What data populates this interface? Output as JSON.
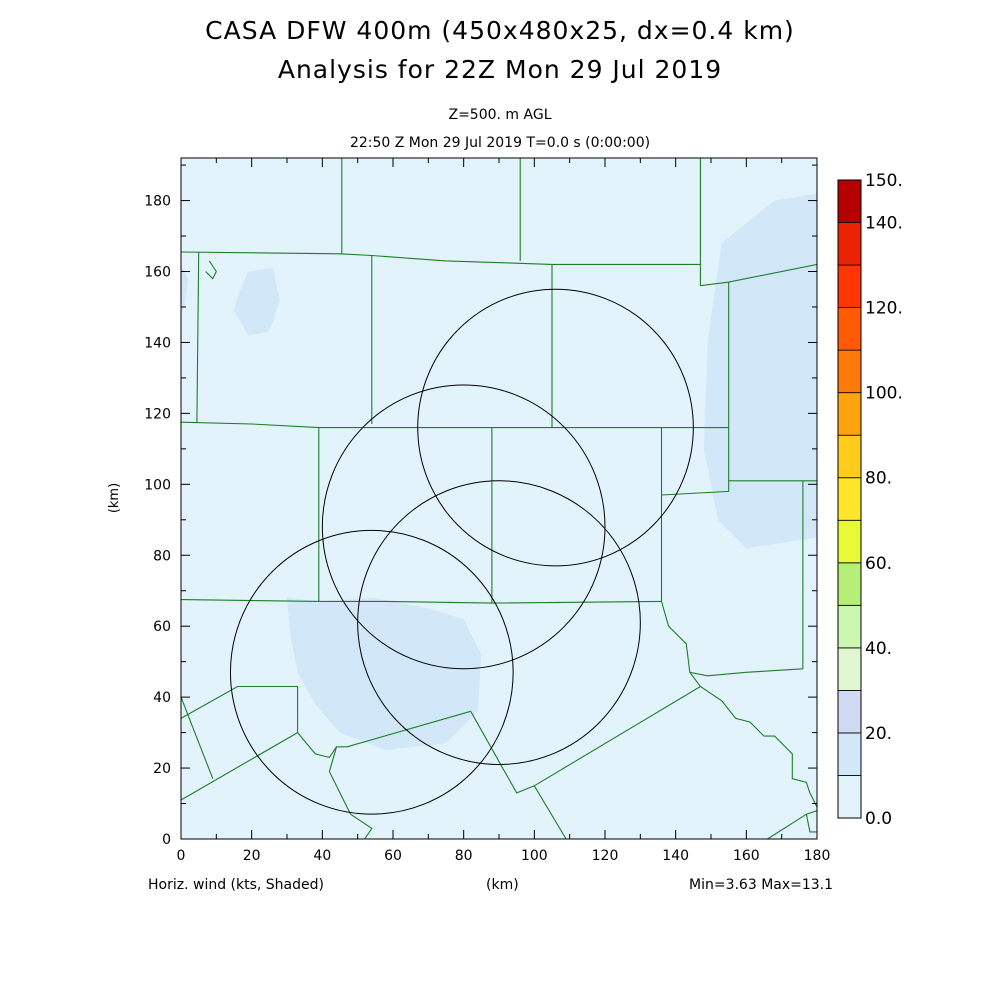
{
  "header": {
    "title_line1": "CASA DFW 400m (450x480x25, dx=0.4 km)",
    "title_line2": "Analysis for 22Z Mon 29 Jul 2019",
    "subtitle_line1": "Z=500. m AGL",
    "subtitle_line2": "22:50 Z Mon 29 Jul 2019   T=0.0 s (0:00:00)"
  },
  "footer": {
    "field_label": "Horiz. wind (kts, Shaded)",
    "xunit_label": "(km)",
    "minmax": "Min=3.63 Max=13.1"
  },
  "chart_data": {
    "type": "heatmap",
    "xlabel": "(km)",
    "ylabel": "(km)",
    "xlim": [
      0,
      180
    ],
    "ylim": [
      0,
      192
    ],
    "xticks": [
      0,
      20,
      40,
      60,
      80,
      100,
      120,
      140,
      160,
      180
    ],
    "yticks": [
      0,
      20,
      40,
      60,
      80,
      100,
      120,
      140,
      160,
      180
    ],
    "field": "Horiz. wind (kts, Shaded)",
    "field_min": 3.63,
    "field_max": 13.1,
    "colorbar": {
      "labels": [
        {
          "v": 0,
          "t": "0.0"
        },
        {
          "v": 20,
          "t": "20."
        },
        {
          "v": 40,
          "t": "40."
        },
        {
          "v": 60,
          "t": "60."
        },
        {
          "v": 80,
          "t": "80."
        },
        {
          "v": 100,
          "t": "100."
        },
        {
          "v": 120,
          "t": "120."
        },
        {
          "v": 140,
          "t": "140."
        },
        {
          "v": 150,
          "t": "150."
        }
      ],
      "bins": [
        {
          "from": 0,
          "to": 10,
          "color": "#e2f3fc"
        },
        {
          "from": 10,
          "to": 20,
          "color": "#d2e8f9"
        },
        {
          "from": 20,
          "to": 30,
          "color": "#d2d9f4"
        },
        {
          "from": 30,
          "to": 40,
          "color": "#dff8d3"
        },
        {
          "from": 40,
          "to": 50,
          "color": "#cbf7b0"
        },
        {
          "from": 50,
          "to": 60,
          "color": "#b5ef78"
        },
        {
          "from": 60,
          "to": 70,
          "color": "#e6fa37"
        },
        {
          "from": 70,
          "to": 80,
          "color": "#ffe62a"
        },
        {
          "from": 80,
          "to": 90,
          "color": "#ffcc1c"
        },
        {
          "from": 90,
          "to": 100,
          "color": "#ffa30f"
        },
        {
          "from": 100,
          "to": 110,
          "color": "#ff7a0a"
        },
        {
          "from": 110,
          "to": 120,
          "color": "#ff5a06"
        },
        {
          "from": 120,
          "to": 130,
          "color": "#ff3504"
        },
        {
          "from": 130,
          "to": 140,
          "color": "#ea2303"
        },
        {
          "from": 140,
          "to": 150,
          "color": "#b40000"
        }
      ]
    },
    "wind_regions": [
      {
        "level": "10-20",
        "points": [
          [
            16,
            153
          ],
          [
            19,
            160
          ],
          [
            26,
            161
          ],
          [
            28,
            152
          ],
          [
            25,
            143
          ],
          [
            19,
            142
          ],
          [
            15,
            149
          ]
        ]
      },
      {
        "level": "10-20",
        "points": [
          [
            30,
            68
          ],
          [
            40,
            67
          ],
          [
            55,
            68
          ],
          [
            70,
            65
          ],
          [
            80,
            62
          ],
          [
            85,
            52
          ],
          [
            84,
            36
          ],
          [
            75,
            27
          ],
          [
            58,
            25
          ],
          [
            45,
            30
          ],
          [
            38,
            38
          ],
          [
            33,
            47
          ],
          [
            31,
            57
          ]
        ]
      },
      {
        "level": "10-20",
        "points": [
          [
            153,
            168
          ],
          [
            168,
            180
          ],
          [
            180,
            182
          ],
          [
            180,
            85
          ],
          [
            160,
            82
          ],
          [
            152,
            90
          ],
          [
            148,
            110
          ],
          [
            149,
            140
          ]
        ]
      },
      {
        "level": "10-20",
        "points": [
          [
            0,
            162
          ],
          [
            2,
            158
          ],
          [
            1,
            150
          ],
          [
            0,
            148
          ]
        ]
      }
    ],
    "radar_rings": [
      {
        "cx": 106,
        "cy": 116,
        "r": 39
      },
      {
        "cx": 80,
        "cy": 88,
        "r": 40
      },
      {
        "cx": 90,
        "cy": 61,
        "r": 40
      },
      {
        "cx": 54,
        "cy": 47,
        "r": 40
      }
    ],
    "county_lines": [
      [
        [
          0,
          165.5
        ],
        [
          45,
          165
        ],
        [
          54,
          164.5
        ],
        [
          75,
          163
        ],
        [
          105,
          162
        ],
        [
          147,
          162
        ]
      ],
      [
        [
          0,
          117.5
        ],
        [
          20,
          117
        ],
        [
          39,
          116
        ],
        [
          75,
          116
        ],
        [
          105,
          116
        ],
        [
          155,
          116
        ]
      ],
      [
        [
          0,
          67.5
        ],
        [
          39,
          67
        ],
        [
          58,
          67
        ],
        [
          88,
          66.5
        ],
        [
          136,
          67
        ]
      ],
      [
        [
          45.5,
          192
        ],
        [
          45.5,
          165
        ]
      ],
      [
        [
          96,
          192
        ],
        [
          96,
          163
        ]
      ],
      [
        [
          147,
          192
        ],
        [
          147,
          156
        ]
      ],
      [
        [
          147,
          156
        ],
        [
          155,
          157
        ],
        [
          180,
          162
        ]
      ],
      [
        [
          5,
          165.5
        ],
        [
          4.5,
          117.5
        ]
      ],
      [
        [
          54,
          164.5
        ],
        [
          54,
          117
        ]
      ],
      [
        [
          105,
          162
        ],
        [
          105,
          116
        ]
      ],
      [
        [
          39,
          116
        ],
        [
          39,
          67
        ]
      ],
      [
        [
          88,
          116
        ],
        [
          88,
          66.5
        ]
      ],
      [
        [
          136,
          116
        ],
        [
          136,
          67
        ]
      ],
      [
        [
          155,
          157
        ],
        [
          155,
          116
        ],
        [
          155,
          101
        ]
      ],
      [
        [
          136,
          97
        ],
        [
          155,
          98
        ],
        [
          155,
          101
        ],
        [
          175,
          101
        ],
        [
          180,
          101
        ]
      ],
      [
        [
          176,
          101
        ],
        [
          176,
          48
        ]
      ],
      [
        [
          136,
          67
        ],
        [
          138,
          60
        ],
        [
          143,
          55
        ],
        [
          144,
          47
        ],
        [
          149,
          46
        ],
        [
          160,
          47
        ],
        [
          176,
          48
        ]
      ],
      [
        [
          0,
          40
        ],
        [
          9,
          17
        ]
      ],
      [
        [
          0,
          34
        ],
        [
          16,
          43
        ],
        [
          33,
          43
        ],
        [
          33,
          30
        ]
      ],
      [
        [
          0,
          11
        ],
        [
          33,
          30
        ],
        [
          38,
          24
        ],
        [
          42,
          23
        ],
        [
          44,
          26
        ],
        [
          47,
          26
        ],
        [
          82,
          36
        ]
      ],
      [
        [
          44,
          26
        ],
        [
          42,
          19
        ],
        [
          46,
          11
        ],
        [
          48,
          7
        ],
        [
          51,
          5
        ],
        [
          54,
          3
        ],
        [
          52,
          0
        ]
      ],
      [
        [
          82,
          36
        ],
        [
          95,
          13
        ],
        [
          100,
          15
        ],
        [
          147,
          43
        ]
      ],
      [
        [
          100,
          15
        ],
        [
          109,
          0
        ]
      ],
      [
        [
          144,
          47
        ],
        [
          147,
          43
        ],
        [
          153,
          39
        ],
        [
          157,
          34
        ],
        [
          161,
          33
        ],
        [
          165,
          29
        ],
        [
          168,
          29
        ],
        [
          173,
          24
        ],
        [
          173,
          17
        ],
        [
          177,
          16
        ],
        [
          178,
          13
        ],
        [
          180,
          9
        ]
      ],
      [
        [
          166,
          0
        ],
        [
          177,
          7
        ],
        [
          180,
          8
        ]
      ],
      [
        [
          177,
          7
        ],
        [
          178,
          2
        ],
        [
          180,
          2
        ]
      ],
      [
        [
          8,
          163
        ],
        [
          10,
          160
        ],
        [
          9,
          158
        ],
        [
          7,
          160
        ]
      ]
    ]
  }
}
